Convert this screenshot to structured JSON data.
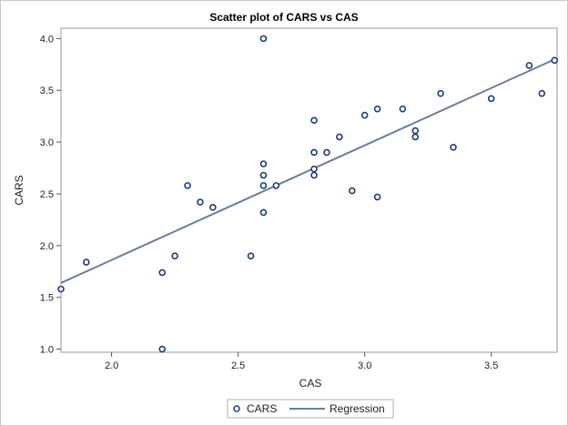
{
  "chart_data": {
    "type": "scatter",
    "title": "Scatter plot of CARS vs CAS",
    "xlabel": "CAS",
    "ylabel": "CARS",
    "xlim": [
      1.8,
      3.76
    ],
    "ylim": [
      0.97,
      4.1
    ],
    "xticks": [
      "2.0",
      "2.5",
      "3.0",
      "3.5"
    ],
    "yticks": [
      "1.0",
      "1.5",
      "2.0",
      "2.5",
      "3.0",
      "3.5",
      "4.0"
    ],
    "grid": false,
    "legend_position": "bottom-center",
    "series": [
      {
        "name": "CARS",
        "kind": "points",
        "color": "#1f3a7a",
        "points": [
          [
            1.8,
            1.58
          ],
          [
            1.9,
            1.84
          ],
          [
            2.2,
            1.74
          ],
          [
            2.2,
            1.0
          ],
          [
            2.25,
            1.9
          ],
          [
            2.3,
            2.58
          ],
          [
            2.35,
            2.42
          ],
          [
            2.4,
            2.37
          ],
          [
            2.55,
            1.9
          ],
          [
            2.6,
            4.0
          ],
          [
            2.6,
            2.79
          ],
          [
            2.6,
            2.68
          ],
          [
            2.6,
            2.58
          ],
          [
            2.6,
            2.32
          ],
          [
            2.65,
            2.58
          ],
          [
            2.8,
            3.21
          ],
          [
            2.8,
            2.9
          ],
          [
            2.8,
            2.74
          ],
          [
            2.8,
            2.68
          ],
          [
            2.85,
            2.9
          ],
          [
            2.9,
            3.05
          ],
          [
            2.95,
            2.53
          ],
          [
            3.0,
            3.26
          ],
          [
            3.05,
            3.32
          ],
          [
            3.05,
            2.47
          ],
          [
            3.15,
            3.32
          ],
          [
            3.2,
            3.11
          ],
          [
            3.2,
            3.05
          ],
          [
            3.3,
            3.47
          ],
          [
            3.35,
            2.95
          ],
          [
            3.5,
            3.42
          ],
          [
            3.65,
            3.74
          ],
          [
            3.7,
            3.47
          ],
          [
            3.75,
            3.79
          ]
        ]
      },
      {
        "name": "Regression",
        "kind": "line",
        "color": "#6b7f99",
        "points": [
          [
            1.8,
            1.64
          ],
          [
            3.76,
            3.81
          ]
        ]
      }
    ]
  }
}
